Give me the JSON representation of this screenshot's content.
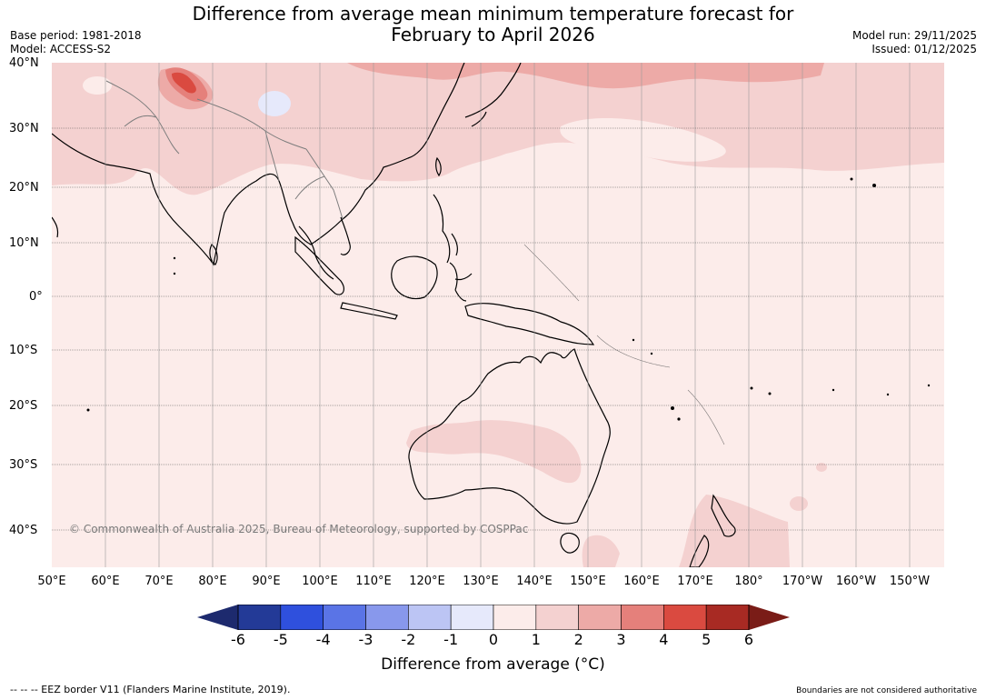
{
  "header": {
    "title_line1": "Difference from average mean minimum temperature forecast for",
    "title_line2": "February to April 2026",
    "base_period": "Base period: 1981-2018",
    "model": "Model: ACCESS-S2",
    "model_run": "Model run: 29/11/2025",
    "issued": "Issued: 01/12/2025"
  },
  "map": {
    "copyright": "© Commonwealth of Australia 2025, Bureau of Meteorology, supported by COSPPac",
    "lat_labels": [
      "40°N",
      "30°N",
      "20°N",
      "10°N",
      "0°",
      "10°S",
      "20°S",
      "30°S",
      "40°S"
    ],
    "lon_labels": [
      "50°E",
      "60°E",
      "70°E",
      "80°E",
      "90°E",
      "100°E",
      "110°E",
      "120°E",
      "130°E",
      "140°E",
      "150°E",
      "160°E",
      "170°E",
      "180°",
      "170°W",
      "160°W",
      "150°W"
    ]
  },
  "colorbar": {
    "ticks": [
      "-6",
      "-5",
      "-4",
      "-3",
      "-2",
      "-1",
      "0",
      "1",
      "2",
      "3",
      "4",
      "5",
      "6"
    ],
    "colors": [
      "#233a97",
      "#2f50dd",
      "#5a74e6",
      "#8898ec",
      "#bcc5f4",
      "#e6e9fb",
      "#fcecea",
      "#f4d1d0",
      "#edaaa7",
      "#e5807b",
      "#da4a40",
      "#a82a23"
    ],
    "under_color": "#1d2a6e",
    "over_color": "#7a1c17",
    "title": "Difference from average (°C)"
  },
  "footer": {
    "eez_note": "--  --  -- EEZ border V11 (Flanders Marine Institute, 2019).",
    "boundaries_note": "Boundaries are not considered authoritative"
  }
}
